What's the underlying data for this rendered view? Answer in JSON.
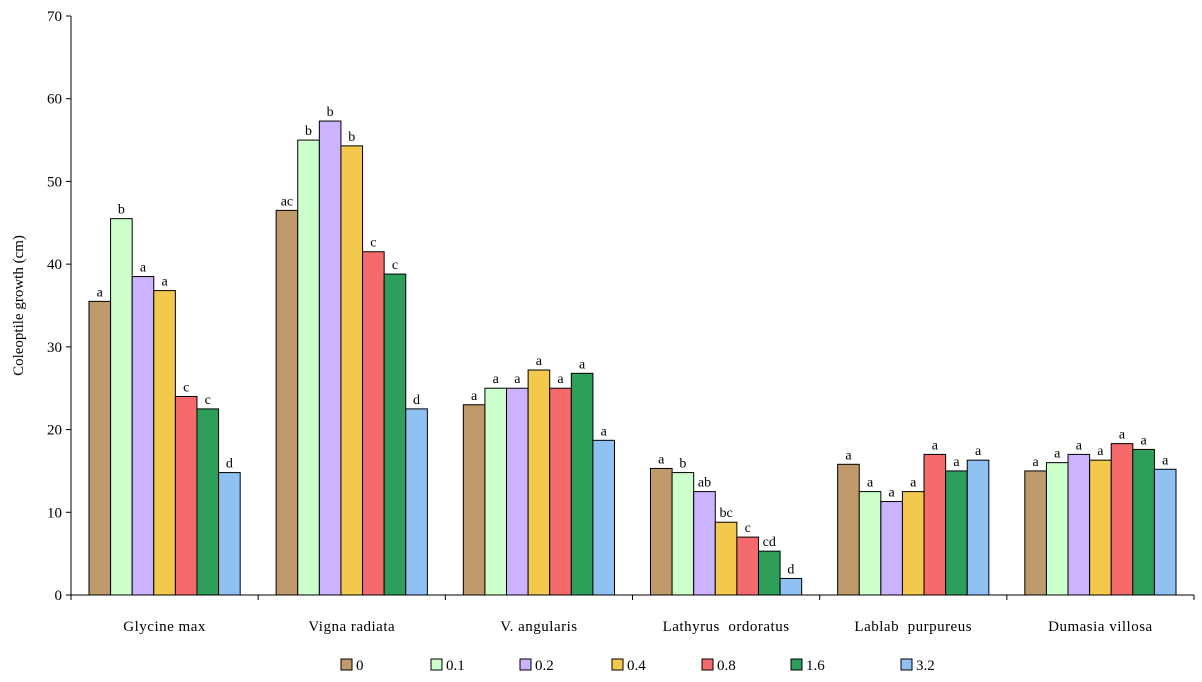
{
  "chart_data": {
    "type": "bar",
    "title": "",
    "xlabel": "",
    "ylabel": "Coleoptile growth (cm)",
    "ylim": [
      0,
      70
    ],
    "yticks": [
      0,
      10,
      20,
      30,
      40,
      50,
      60,
      70
    ],
    "grid": false,
    "legend_position": "bottom",
    "categories": [
      "Glycine max",
      "Vigna radiata",
      "V. angularis",
      "Lathyrus  ordoratus",
      "Lablab  purpureus",
      "Dumasia villosa"
    ],
    "series": [
      {
        "name": "0",
        "color": "#c19a6b",
        "values": [
          35.5,
          46.5,
          23.0,
          15.3,
          15.8,
          15.0
        ],
        "letters": [
          "a",
          "ac",
          "a",
          "a",
          "a",
          "a"
        ]
      },
      {
        "name": "0.1",
        "color": "#ccffcc",
        "values": [
          45.5,
          55.0,
          25.0,
          14.8,
          12.5,
          16.0
        ],
        "letters": [
          "b",
          "b",
          "a",
          "b",
          "a",
          "a"
        ]
      },
      {
        "name": "0.2",
        "color": "#ccb3ff",
        "values": [
          38.5,
          57.3,
          25.0,
          12.5,
          11.3,
          17.0
        ],
        "letters": [
          "a",
          "b",
          "a",
          "ab",
          "a",
          "a"
        ]
      },
      {
        "name": "0.4",
        "color": "#f2c94c",
        "values": [
          36.8,
          54.3,
          27.2,
          8.8,
          12.5,
          16.3
        ],
        "letters": [
          "a",
          "b",
          "a",
          "bc",
          "a",
          "a"
        ]
      },
      {
        "name": "0.8",
        "color": "#f56b6b",
        "values": [
          24.0,
          41.5,
          25.0,
          7.0,
          17.0,
          18.3
        ],
        "letters": [
          "c",
          "c",
          "a",
          "c",
          "a",
          "a"
        ]
      },
      {
        "name": "1.6",
        "color": "#2e9e5b",
        "values": [
          22.5,
          38.8,
          26.8,
          5.3,
          15.0,
          17.6
        ],
        "letters": [
          "c",
          "c",
          "a",
          "cd",
          "a",
          "a"
        ]
      },
      {
        "name": "3.2",
        "color": "#8fc1f2",
        "values": [
          14.8,
          22.5,
          18.7,
          2.0,
          16.3,
          15.2
        ],
        "letters": [
          "d",
          "d",
          "a",
          "d",
          "a",
          "a"
        ]
      }
    ]
  }
}
